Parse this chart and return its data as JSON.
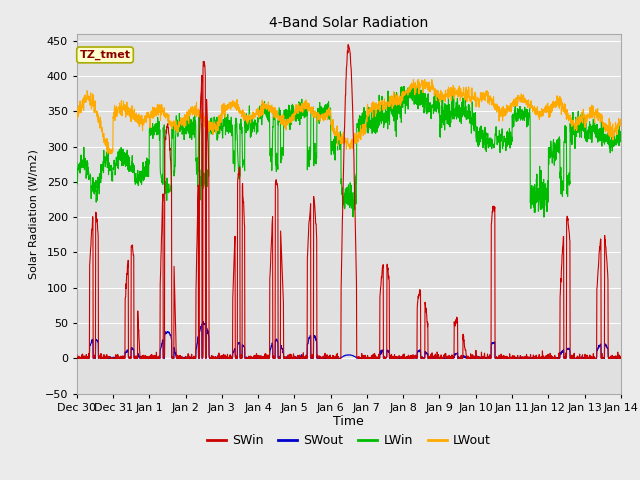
{
  "title": "4-Band Solar Radiation",
  "xlabel": "Time",
  "ylabel": "Solar Radiation (W/m2)",
  "ylim": [
    -50,
    460
  ],
  "xlim": [
    0,
    15
  ],
  "fig_bg": "#ebebeb",
  "plot_bg": "#e0e0e0",
  "annotation_text": "TZ_tmet",
  "annotation_fg": "#8b0000",
  "annotation_bg": "#ffffcc",
  "annotation_edge": "#aaaa00",
  "x_tick_labels": [
    "Dec 30",
    "Dec 31",
    "Jan 1",
    "Jan 2",
    "Jan 3",
    "Jan 4",
    "Jan 5",
    "Jan 6",
    "Jan 7",
    "Jan 8",
    "Jan 9",
    "Jan 10",
    "Jan 11",
    "Jan 12",
    "Jan 13",
    "Jan 14"
  ],
  "x_tick_positions": [
    0,
    1,
    2,
    3,
    4,
    5,
    6,
    7,
    8,
    9,
    10,
    11,
    12,
    13,
    14,
    15
  ],
  "y_ticks": [
    -50,
    0,
    50,
    100,
    150,
    200,
    250,
    300,
    350,
    400,
    450
  ],
  "colors": {
    "SWin": "#cc0000",
    "SWout": "#0000cc",
    "LWin": "#00bb00",
    "LWout": "#ffaa00"
  },
  "grid_color": "#ffffff",
  "lw_data": 0.8,
  "figsize": [
    6.4,
    4.8
  ],
  "dpi": 100
}
